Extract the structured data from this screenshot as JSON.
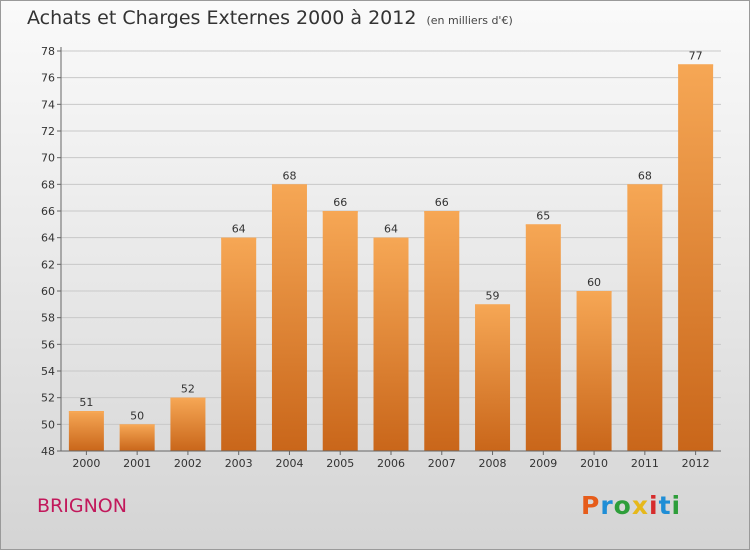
{
  "title": "Achats et Charges Externes 2000 à 2012",
  "unit": "(en milliers d'€)",
  "place": "BRIGNON",
  "logo": {
    "text": "Proxiti",
    "colors": [
      "#e65c1a",
      "#1f8ed6",
      "#2e9e3a",
      "#e6b81a",
      "#d62c2c",
      "#1f8ed6",
      "#2e9e3a"
    ]
  },
  "colors": {
    "bar_light": "#f6a755",
    "bar_dark": "#c9661a",
    "axis": "#666666",
    "grid": "#c8c8c8"
  },
  "chart_data": {
    "type": "bar",
    "categories": [
      "2000",
      "2001",
      "2002",
      "2003",
      "2004",
      "2005",
      "2006",
      "2007",
      "2008",
      "2009",
      "2010",
      "2011",
      "2012"
    ],
    "values": [
      51,
      50,
      52,
      64,
      68,
      66,
      64,
      66,
      59,
      65,
      60,
      68,
      77
    ],
    "yticks": [
      48,
      50,
      52,
      54,
      56,
      58,
      60,
      62,
      64,
      66,
      68,
      70,
      72,
      74,
      76,
      78
    ],
    "ylim": [
      48,
      78
    ],
    "grid": true,
    "xlabel": "",
    "ylabel": ""
  }
}
